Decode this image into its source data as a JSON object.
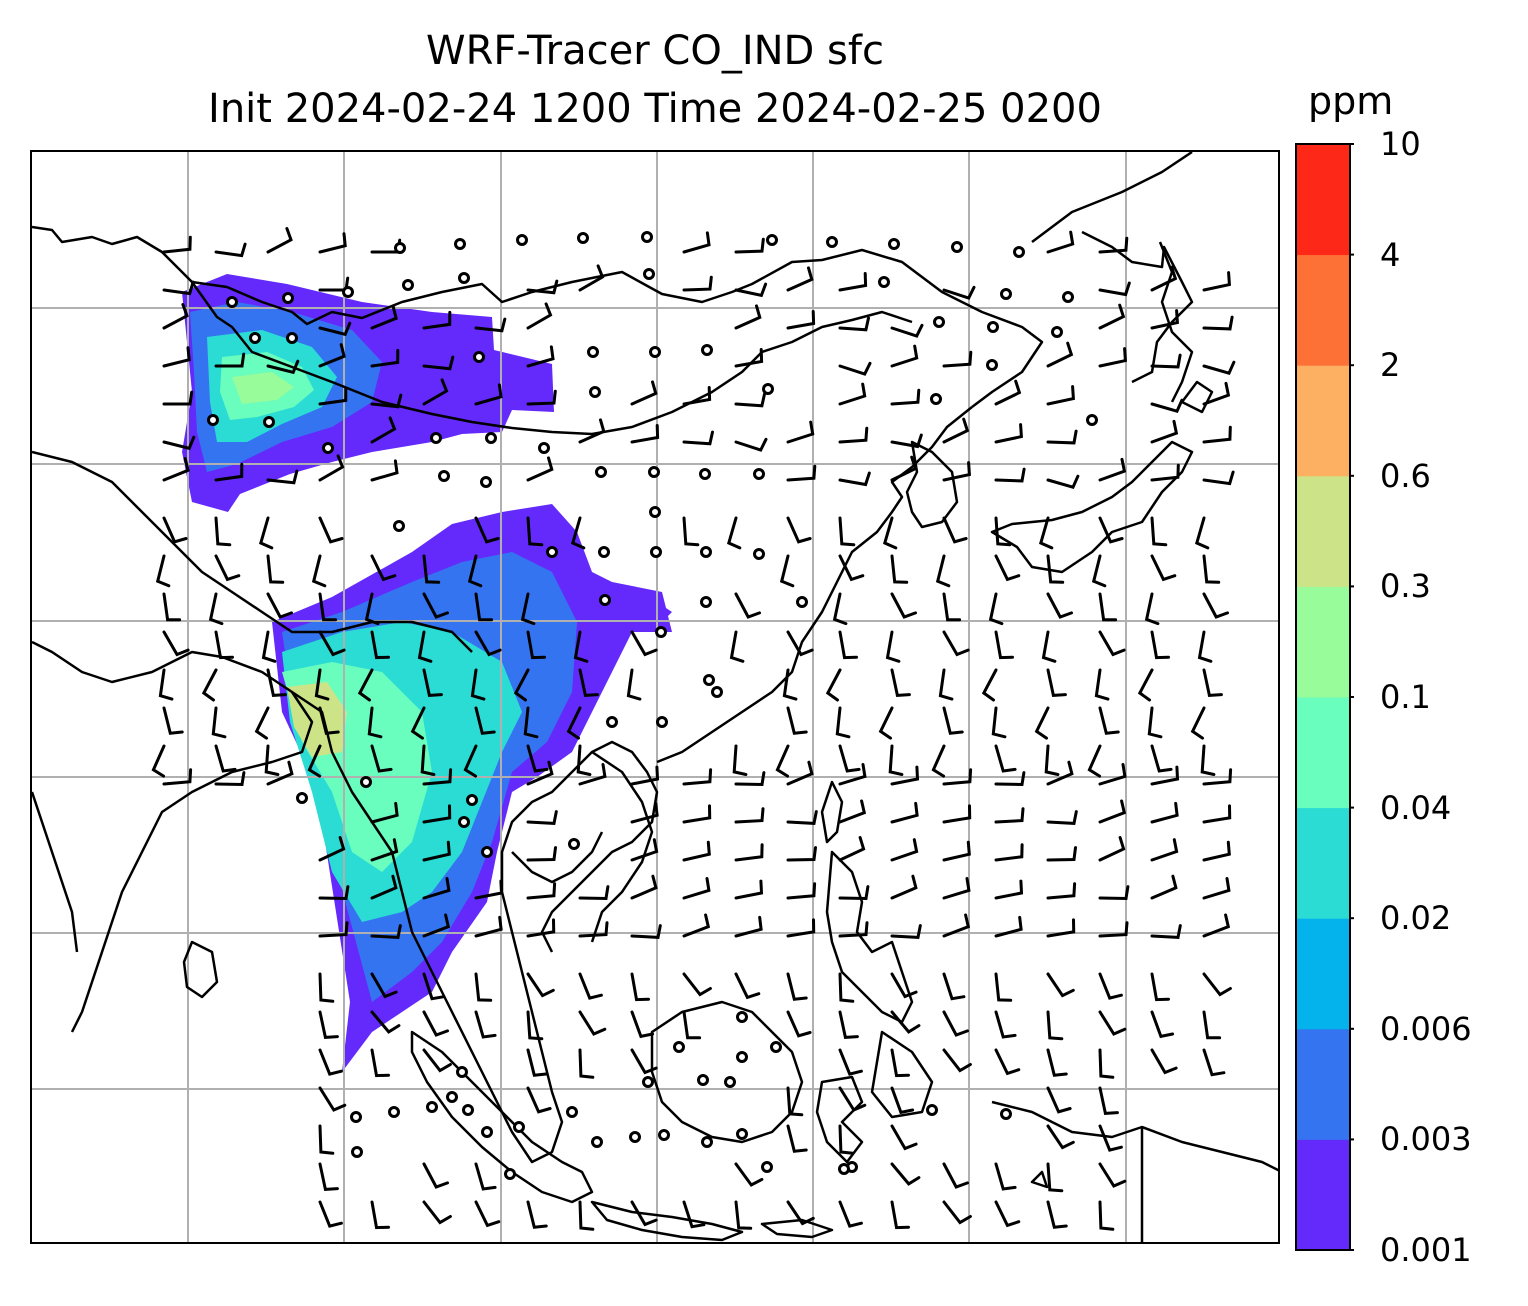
{
  "title": {
    "line1": "WRF-Tracer CO_IND sfc",
    "line2": "Init 2024-02-24 1200 Time 2024-02-25 0200"
  },
  "colorbar": {
    "unit": "ppm",
    "levels": [
      "0.001",
      "0.003",
      "0.006",
      "0.02",
      "0.04",
      "0.1",
      "0.3",
      "0.6",
      "2",
      "4",
      "10"
    ],
    "colors": [
      "#6429fb",
      "#3574f1",
      "#04b2ec",
      "#2adcd4",
      "#69fdbe",
      "#97fc99",
      "#cce487",
      "#fdb061",
      "#fd7137",
      "#fd2817"
    ]
  },
  "map": {
    "domain": "East and Southeast Asia",
    "grid": true,
    "variable": "CO_IND surface tracer concentration",
    "overlay": "wind barbs and calm-wind circles",
    "line_color": "#000000",
    "grid_color": "#b0b0b0"
  }
}
